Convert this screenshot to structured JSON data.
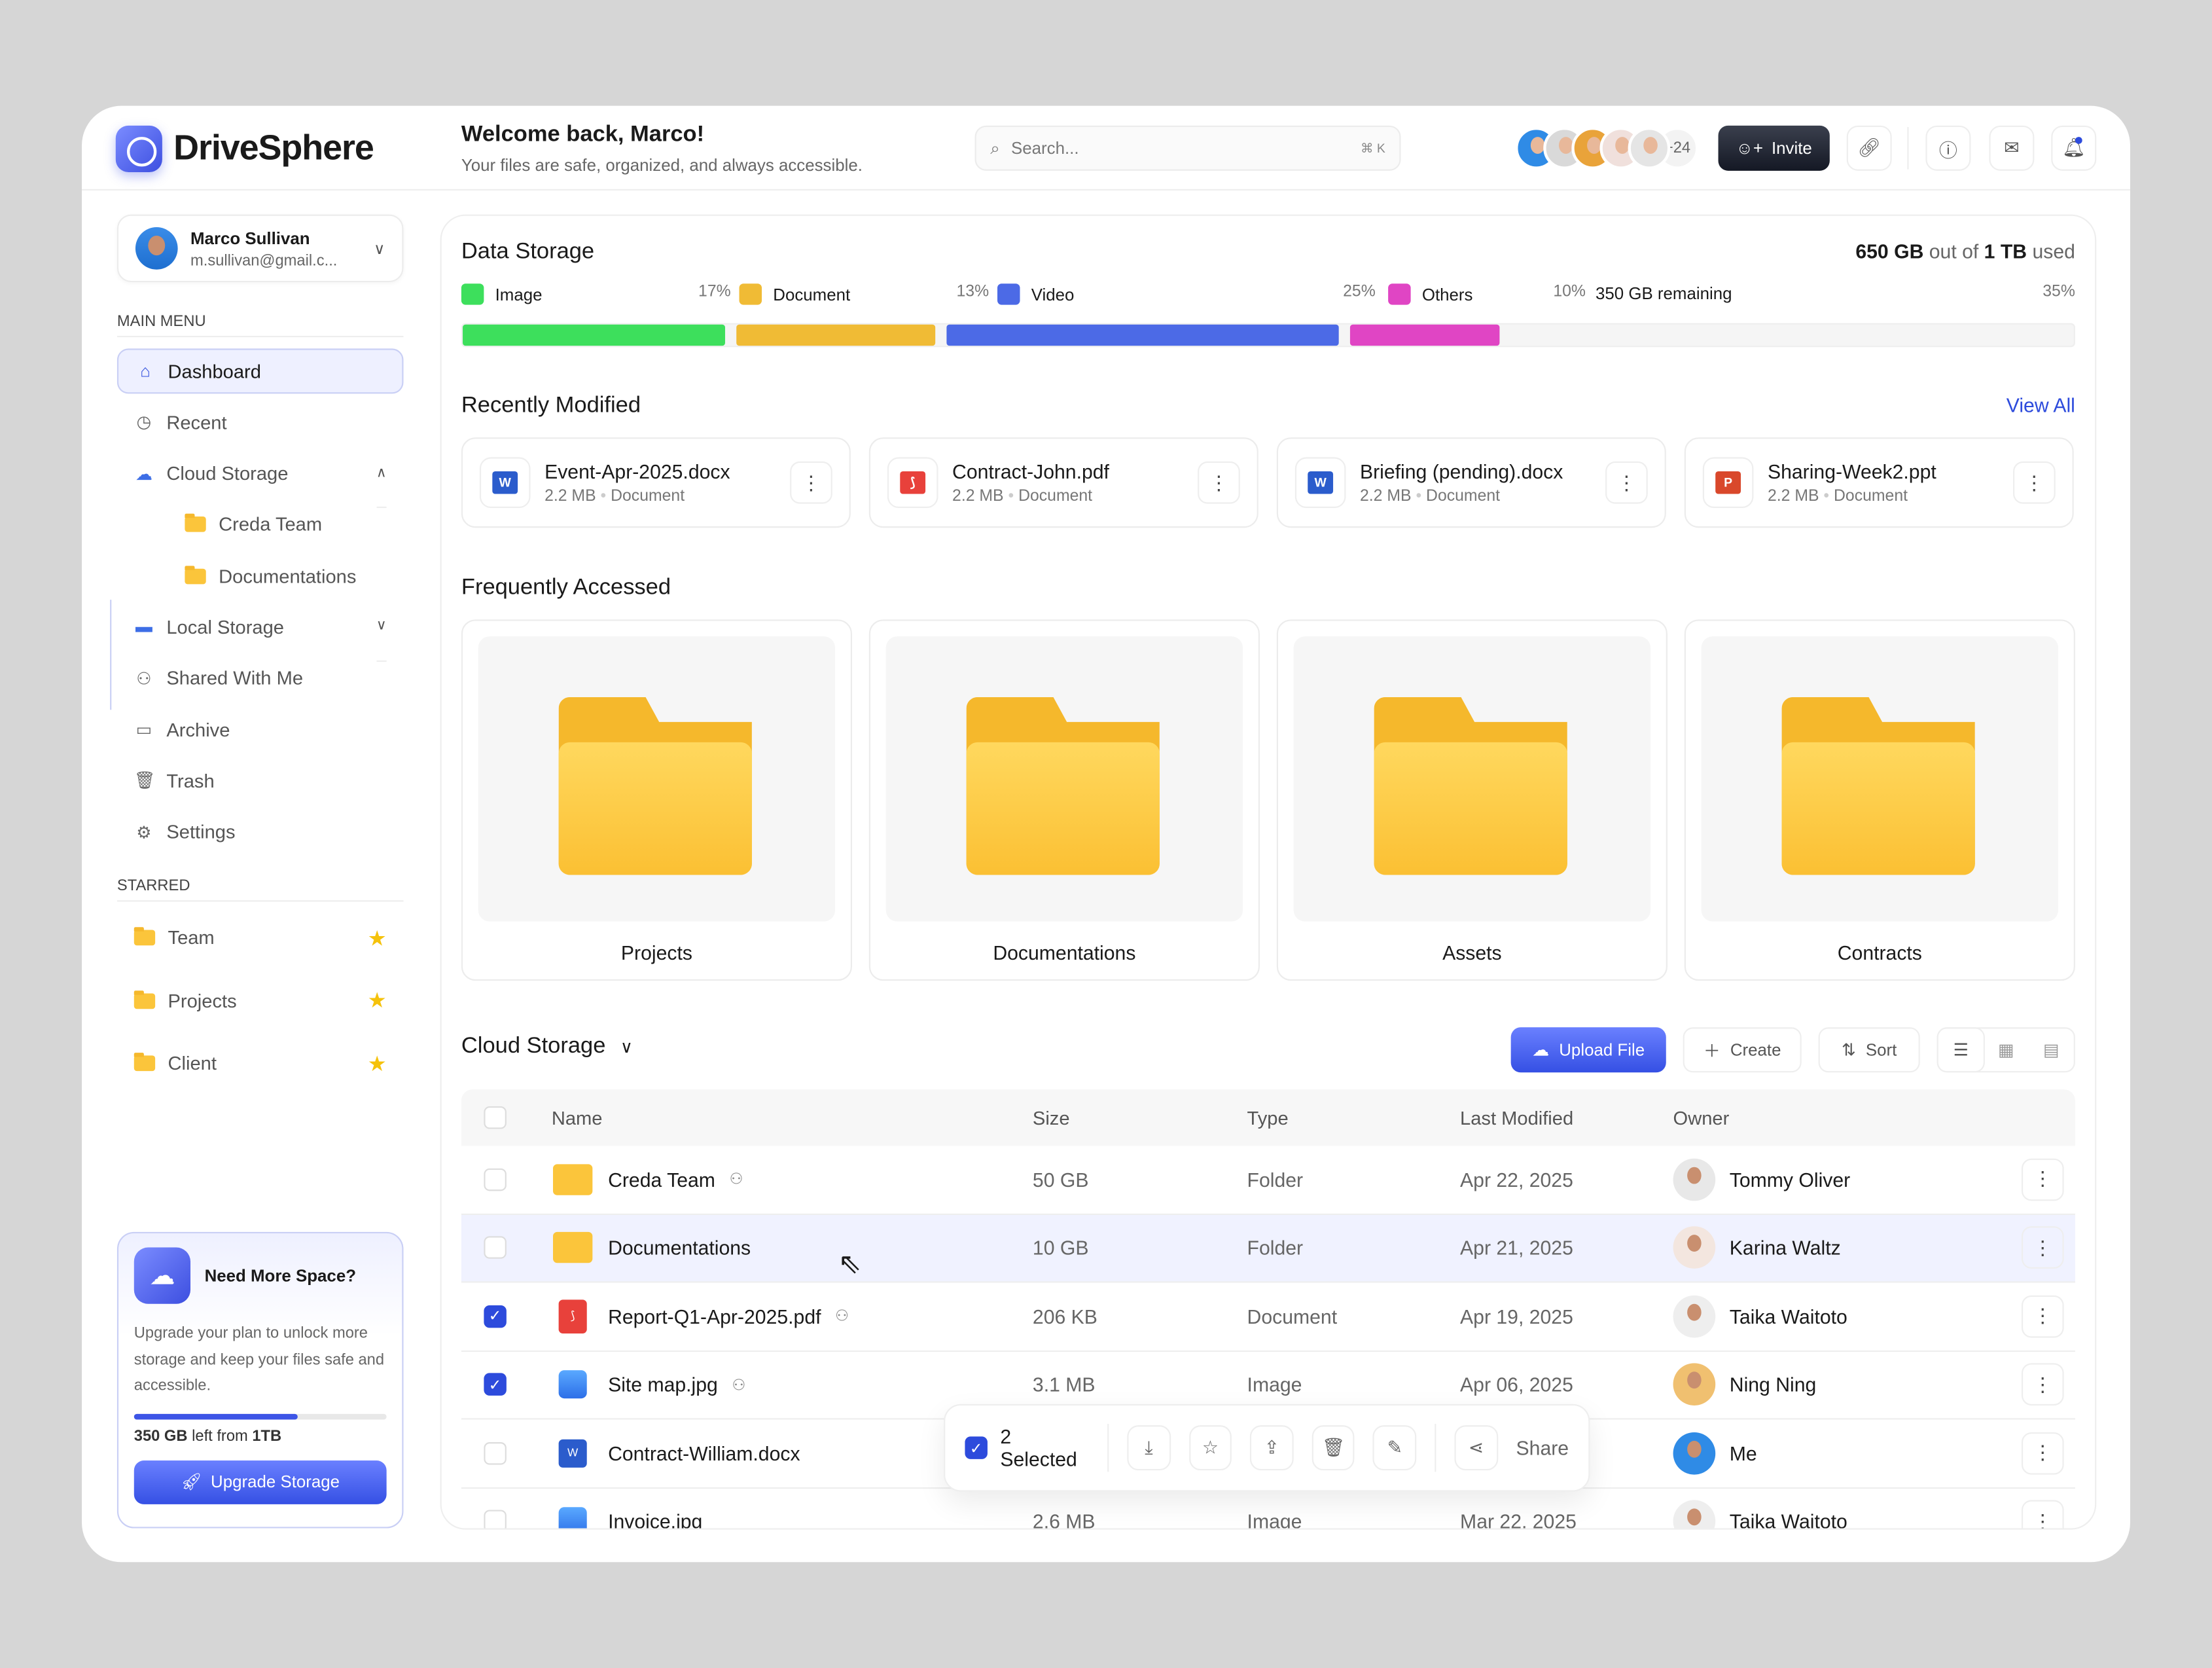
{
  "app": {
    "name": "DriveSphere",
    "welcome": "Welcome back, Marco!",
    "tagline": "Your files are safe, organized, and always accessible."
  },
  "header": {
    "search_placeholder": "Search...",
    "search_shortcut": "⌘ K",
    "collaborators_more": "+24",
    "invite": "Invite"
  },
  "user": {
    "name": "Marco Sullivan",
    "email": "m.sullivan@gmail.c..."
  },
  "sidebar": {
    "main_menu": "MAIN MENU",
    "items": [
      {
        "label": "Dashboard"
      },
      {
        "label": "Recent"
      },
      {
        "label": "Cloud Storage"
      },
      {
        "label": "Creda Team"
      },
      {
        "label": "Documentations"
      },
      {
        "label": "Local Storage"
      },
      {
        "label": "Shared With Me"
      },
      {
        "label": "Archive"
      },
      {
        "label": "Trash"
      },
      {
        "label": "Settings"
      }
    ],
    "starred_title": "STARRED",
    "starred": [
      {
        "label": "Team"
      },
      {
        "label": "Projects"
      },
      {
        "label": "Client"
      }
    ]
  },
  "promo": {
    "title": "Need More Space?",
    "text": "Upgrade your plan to unlock more storage and keep your files safe and accessible.",
    "left_amount": "350 GB",
    "left_text": " left from ",
    "total": "1TB",
    "progress_pct": 65,
    "button": "Upgrade Storage"
  },
  "storage": {
    "title": "Data Storage",
    "used": "650 GB",
    "used_mid": " out of ",
    "total": "1 TB",
    "used_suffix": " used",
    "categories": [
      {
        "label": "Image",
        "pct": "17%",
        "value": 17,
        "color": "#3ddf5c"
      },
      {
        "label": "Document",
        "pct": "13%",
        "value": 13,
        "color": "#f0bb35"
      },
      {
        "label": "Video",
        "pct": "25%",
        "value": 25,
        "color": "#4c6ae6"
      },
      {
        "label": "Others",
        "pct": "10%",
        "value": 10,
        "color": "#e045c4"
      }
    ],
    "remaining": "350 GB remaining",
    "remaining_pct": "35%"
  },
  "recent": {
    "title": "Recently Modified",
    "view_all": "View All",
    "files": [
      {
        "name": "Event-Apr-2025.docx",
        "size": "2.2 MB",
        "type": "Document",
        "icon": "W"
      },
      {
        "name": "Contract-John.pdf",
        "size": "2.2 MB",
        "type": "Document",
        "icon": "PDF"
      },
      {
        "name": "Briefing (pending).docx",
        "size": "2.2 MB",
        "type": "Document",
        "icon": "W"
      },
      {
        "name": "Sharing-Week2.ppt",
        "size": "2.2 MB",
        "type": "Document",
        "icon": "P"
      }
    ]
  },
  "frequent": {
    "title": "Frequently Accessed",
    "folders": [
      "Projects",
      "Documentations",
      "Assets",
      "Contracts"
    ]
  },
  "cloud": {
    "title": "Cloud Storage",
    "upload": "Upload File",
    "create": "Create",
    "sort": "Sort",
    "columns": [
      "Name",
      "Size",
      "Type",
      "Last Modified",
      "Owner"
    ],
    "rows": [
      {
        "name": "Creda Team",
        "size": "50 GB",
        "type": "Folder",
        "date": "Apr 22, 2025",
        "owner": "Tommy Oliver"
      },
      {
        "name": "Documentations",
        "size": "10 GB",
        "type": "Folder",
        "date": "Apr 21, 2025",
        "owner": "Karina Waltz"
      },
      {
        "name": "Report-Q1-Apr-2025.pdf",
        "size": "206 KB",
        "type": "Document",
        "date": "Apr 19, 2025",
        "owner": "Taika Waitoto"
      },
      {
        "name": "Site map.jpg",
        "size": "3.1 MB",
        "type": "Image",
        "date": "Apr 06, 2025",
        "owner": "Ning Ning"
      },
      {
        "name": "Contract-William.docx",
        "size": "",
        "type": "",
        "date": "",
        "owner": "Me"
      },
      {
        "name": "Invoice.jpg",
        "size": "2.6 MB",
        "type": "Image",
        "date": "Mar 22, 2025",
        "owner": "Taika Waitoto"
      }
    ]
  },
  "selection": {
    "count": "2 Selected",
    "share": "Share"
  }
}
